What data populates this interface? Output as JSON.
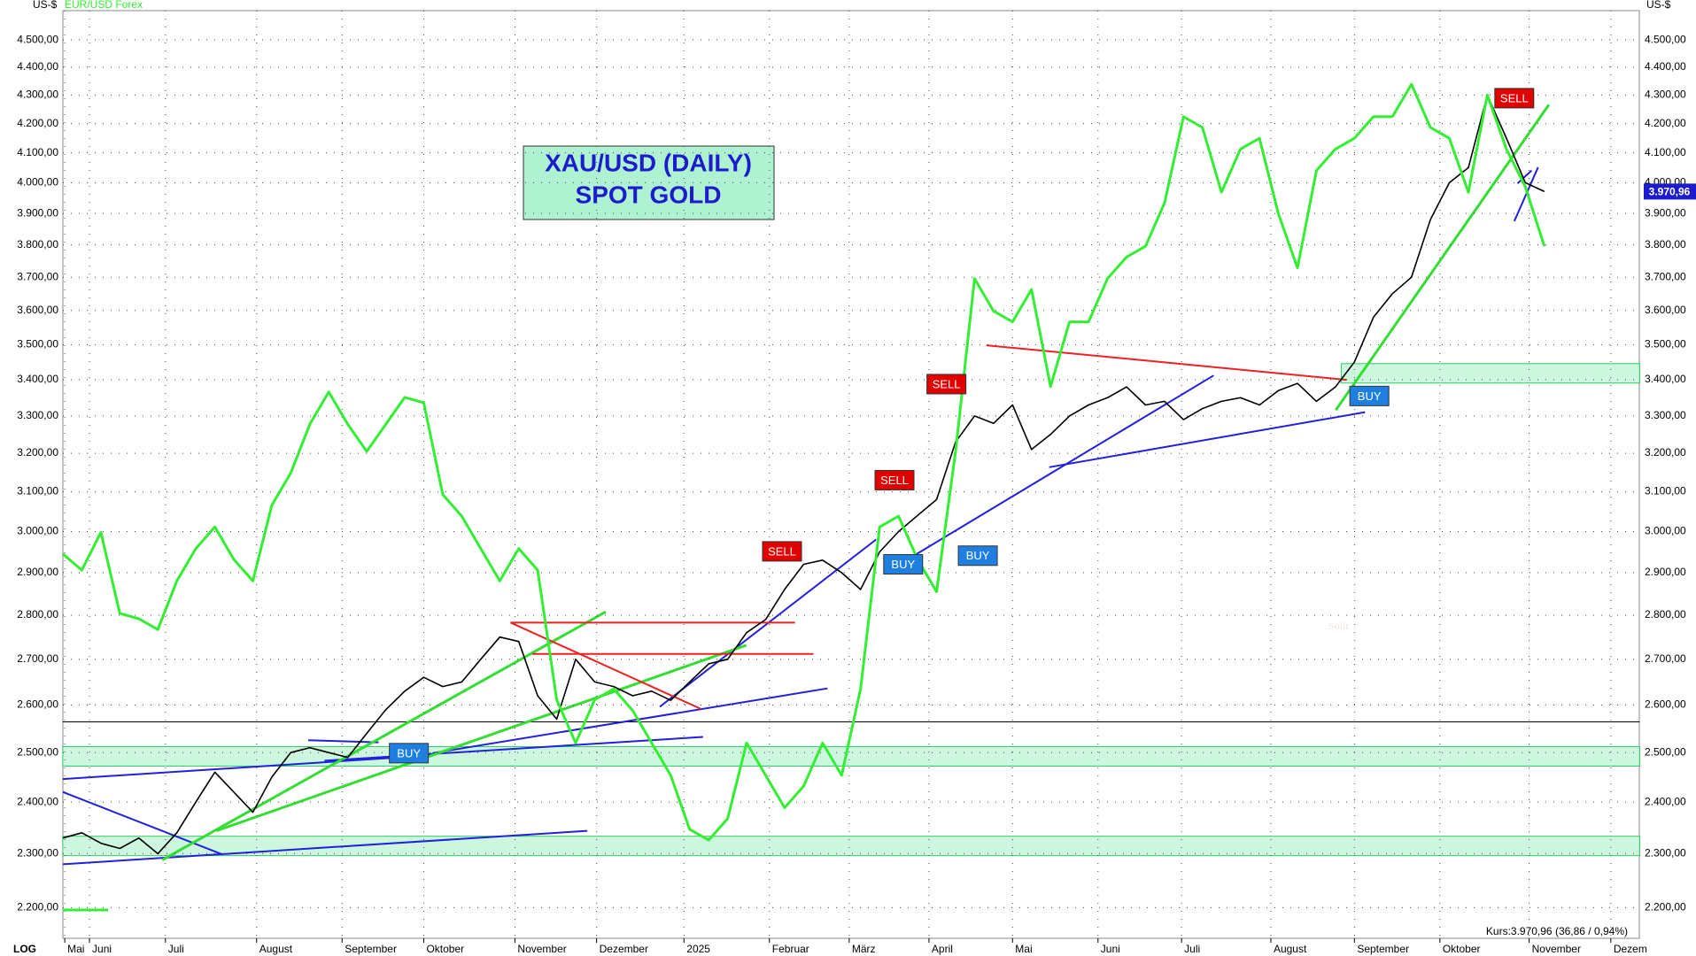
{
  "chart_data": {
    "type": "line",
    "title": "XAU/USD (DAILY)",
    "subtitle": "SPOT GOLD",
    "y_unit_label": "US-$",
    "scale_label": "LOG",
    "log_scale": true,
    "grid": true,
    "status_text": "Kurs:3.970,96 (36,86 / 0,94%)",
    "price_label": "3.970,96",
    "watermark": "Solit",
    "signals": [
      "SELL",
      "SELL",
      "SELL",
      "SELL",
      "BUY",
      "BUY",
      "BUY",
      "BUY"
    ],
    "x": [
      0,
      1,
      2,
      3,
      4,
      5,
      6,
      7,
      8,
      9,
      10,
      11,
      12,
      13,
      14,
      15,
      16,
      17,
      18,
      19,
      20,
      21,
      22,
      23,
      24,
      25,
      26,
      27,
      28,
      29,
      30,
      31,
      32,
      33,
      34,
      35,
      36,
      37,
      38,
      39,
      40,
      41,
      42,
      43,
      44,
      45,
      46,
      47,
      48,
      49,
      50,
      51,
      52,
      53,
      54,
      55,
      56,
      57,
      58,
      59,
      60,
      61,
      62,
      63,
      64,
      65,
      66,
      67,
      68,
      69,
      70,
      71,
      72,
      73,
      74,
      75,
      76,
      77,
      78
    ],
    "xlim": [
      0,
      83
    ],
    "xticks": [
      {
        "value": 0.1,
        "label": "Mai"
      },
      {
        "value": 1.4,
        "label": "Juni"
      },
      {
        "value": 5.4,
        "label": "Juli"
      },
      {
        "value": 10.2,
        "label": "August"
      },
      {
        "value": 14.7,
        "label": "September"
      },
      {
        "value": 19.0,
        "label": "Oktober"
      },
      {
        "value": 23.8,
        "label": "November"
      },
      {
        "value": 28.1,
        "label": "Dezember"
      },
      {
        "value": 32.7,
        "label": "2025"
      },
      {
        "value": 37.2,
        "label": "Februar"
      },
      {
        "value": 41.4,
        "label": "März"
      },
      {
        "value": 45.6,
        "label": "April"
      },
      {
        "value": 50.0,
        "label": "Mai"
      },
      {
        "value": 54.5,
        "label": "Juni"
      },
      {
        "value": 58.9,
        "label": "Juli"
      },
      {
        "value": 63.6,
        "label": "August"
      },
      {
        "value": 68.0,
        "label": "September"
      },
      {
        "value": 72.5,
        "label": "Oktober"
      },
      {
        "value": 77.2,
        "label": "November"
      },
      {
        "value": 81.5,
        "label": "Dezem"
      }
    ],
    "ylim": [
      2145,
      4610
    ],
    "yticks": [
      {
        "value": 2200,
        "label": "2.200,00"
      },
      {
        "value": 2300,
        "label": "2.300,00"
      },
      {
        "value": 2400,
        "label": "2.400,00"
      },
      {
        "value": 2500,
        "label": "2.500,00"
      },
      {
        "value": 2600,
        "label": "2.600,00"
      },
      {
        "value": 2700,
        "label": "2.700,00"
      },
      {
        "value": 2800,
        "label": "2.800,00"
      },
      {
        "value": 2900,
        "label": "2.900,00"
      },
      {
        "value": 3000,
        "label": "3.000,00"
      },
      {
        "value": 3100,
        "label": "3.100,00"
      },
      {
        "value": 3200,
        "label": "3.200,00"
      },
      {
        "value": 3300,
        "label": "3.300,00"
      },
      {
        "value": 3400,
        "label": "3.400,00"
      },
      {
        "value": 3500,
        "label": "3.500,00"
      },
      {
        "value": 3600,
        "label": "3.600,00"
      },
      {
        "value": 3700,
        "label": "3.700,00"
      },
      {
        "value": 3800,
        "label": "3.800,00"
      },
      {
        "value": 3900,
        "label": "3.900,00"
      },
      {
        "value": 4000,
        "label": "4.000,00"
      },
      {
        "value": 4100,
        "label": "4.100,00"
      },
      {
        "value": 4200,
        "label": "4.200,00"
      },
      {
        "value": 4300,
        "label": "4.300,00"
      },
      {
        "value": 4400,
        "label": "4.400,00"
      },
      {
        "value": 4500,
        "label": "4.500,00"
      }
    ],
    "y2lim": [
      1.009,
      1.198
    ],
    "series": [
      {
        "name": "XAU/USD",
        "color": "#000000",
        "values": [
          2330,
          2340,
          2320,
          2310,
          2330,
          2300,
          2340,
          2400,
          2460,
          2420,
          2380,
          2450,
          2500,
          2510,
          2500,
          2490,
          2540,
          2590,
          2630,
          2660,
          2640,
          2650,
          2700,
          2750,
          2740,
          2620,
          2570,
          2700,
          2650,
          2640,
          2620,
          2630,
          2610,
          2650,
          2690,
          2700,
          2760,
          2790,
          2860,
          2920,
          2930,
          2900,
          2860,
          2950,
          3000,
          3040,
          3080,
          3230,
          3300,
          3280,
          3330,
          3210,
          3250,
          3300,
          3330,
          3350,
          3380,
          3330,
          3340,
          3290,
          3320,
          3340,
          3350,
          3330,
          3370,
          3390,
          3340,
          3380,
          3450,
          3580,
          3650,
          3700,
          3880,
          4000,
          4050,
          4300,
          4150,
          4000,
          3970.96
        ]
      },
      {
        "name": "EUR/USD Forex",
        "color": "#33ee33",
        "axis": "y2",
        "values": [
          1.0873,
          1.084,
          1.0917,
          1.0752,
          1.0741,
          1.0719,
          1.0818,
          1.0884,
          1.0928,
          1.0862,
          1.0818,
          1.0972,
          1.1038,
          1.1137,
          1.1203,
          1.1137,
          1.1082,
          1.1137,
          1.1192,
          1.1181,
          1.0994,
          1.095,
          1.0884,
          1.0818,
          1.0884,
          1.084,
          1.0576,
          1.0488,
          1.0576,
          1.0598,
          1.0554,
          1.0488,
          1.0422,
          1.0312,
          1.029,
          1.0334,
          1.0488,
          1.0422,
          1.0356,
          1.04,
          1.0488,
          1.0422,
          1.0598,
          1.0928,
          1.095,
          1.0862,
          1.0796,
          1.1082,
          1.1434,
          1.1368,
          1.1346,
          1.1412,
          1.1214,
          1.1346,
          1.1346,
          1.1434,
          1.1478,
          1.15,
          1.1588,
          1.1764,
          1.1742,
          1.161,
          1.1698,
          1.172,
          1.1566,
          1.1456,
          1.1654,
          1.1698,
          1.172,
          1.1764,
          1.1764,
          1.183,
          1.1742,
          1.172,
          1.161,
          1.1808,
          1.1698,
          1.1621,
          1.15
        ]
      }
    ]
  }
}
